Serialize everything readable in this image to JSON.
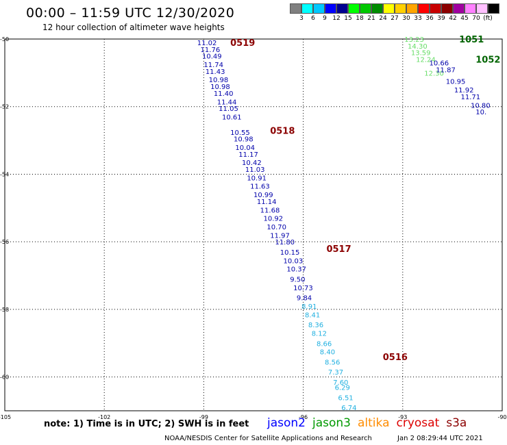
{
  "header": {
    "title": "00:00 – 11:59 UTC 12/30/2020",
    "subtitle": "12 hour collection of altimeter wave heights"
  },
  "legend": {
    "colors": [
      "#808080",
      "#00ffff",
      "#00c8ff",
      "#0000ff",
      "#000090",
      "#00ff00",
      "#00c800",
      "#008c00",
      "#ffff00",
      "#ffd000",
      "#ffa500",
      "#ff0000",
      "#c80000",
      "#8c0000",
      "#a000a0",
      "#ff80ff",
      "#ffc0ff",
      "#000000"
    ],
    "labels": [
      "3",
      "6",
      "9",
      "12",
      "15",
      "18",
      "21",
      "24",
      "27",
      "30",
      "33",
      "36",
      "39",
      "42",
      "45",
      "70",
      "(ft)"
    ]
  },
  "chart_data": {
    "type": "map",
    "x_ticks": [
      "-105",
      "-102",
      "-99",
      "-96",
      "-93",
      "-90"
    ],
    "y_ticks": [
      "-50",
      "-52",
      "-54",
      "-56",
      "-58",
      "-60"
    ],
    "pass_labels": [
      {
        "text": "0519",
        "lon": -98.2,
        "lat": -50.1,
        "color": "#8b0000"
      },
      {
        "text": "0518",
        "lon": -97.0,
        "lat": -52.7,
        "color": "#8b0000"
      },
      {
        "text": "0517",
        "lon": -95.3,
        "lat": -56.2,
        "color": "#8b0000"
      },
      {
        "text": "0516",
        "lon": -93.6,
        "lat": -59.4,
        "color": "#8b0000"
      },
      {
        "text": "1051",
        "lon": -91.3,
        "lat": -50.0,
        "color": "#006400"
      },
      {
        "text": "1052",
        "lon": -90.8,
        "lat": -50.6,
        "color": "#006400"
      }
    ],
    "tracks": [
      {
        "points": [
          {
            "lon": -99.2,
            "lat": -50.1,
            "v": "11.02",
            "c": "#0000aa"
          },
          {
            "lon": -99.1,
            "lat": -50.3,
            "v": "11.76",
            "c": "#0000aa"
          },
          {
            "lon": -99.05,
            "lat": -50.5,
            "v": "10.49",
            "c": "#0000aa"
          },
          {
            "lon": -99.0,
            "lat": -50.75,
            "v": "11.74",
            "c": "#0000aa"
          },
          {
            "lon": -98.95,
            "lat": -50.95,
            "v": "11.43",
            "c": "#0000aa"
          },
          {
            "lon": -98.85,
            "lat": -51.2,
            "v": "10.98",
            "c": "#0000aa"
          },
          {
            "lon": -98.8,
            "lat": -51.4,
            "v": "10.98",
            "c": "#0000aa"
          },
          {
            "lon": -98.7,
            "lat": -51.6,
            "v": "11.40",
            "c": "#0000aa"
          },
          {
            "lon": -98.6,
            "lat": -51.85,
            "v": "11.44",
            "c": "#0000aa"
          },
          {
            "lon": -98.55,
            "lat": -52.05,
            "v": "11.05",
            "c": "#0000aa"
          },
          {
            "lon": -98.45,
            "lat": -52.3,
            "v": "10.61",
            "c": "#0000aa"
          },
          {
            "lon": -98.2,
            "lat": -52.75,
            "v": "10.55",
            "c": "#0000aa"
          },
          {
            "lon": -98.1,
            "lat": -52.95,
            "v": "10.98",
            "c": "#0000aa"
          },
          {
            "lon": -98.05,
            "lat": -53.2,
            "v": "10.04",
            "c": "#0000aa"
          },
          {
            "lon": -97.95,
            "lat": -53.4,
            "v": "11.17",
            "c": "#0000aa"
          },
          {
            "lon": -97.85,
            "lat": -53.65,
            "v": "10.42",
            "c": "#0000aa"
          },
          {
            "lon": -97.75,
            "lat": -53.85,
            "v": "11.03",
            "c": "#0000aa"
          },
          {
            "lon": -97.7,
            "lat": -54.1,
            "v": "10.91",
            "c": "#0000aa"
          },
          {
            "lon": -97.6,
            "lat": -54.35,
            "v": "11.63",
            "c": "#0000aa"
          },
          {
            "lon": -97.5,
            "lat": -54.6,
            "v": "10.99",
            "c": "#0000aa"
          },
          {
            "lon": -97.4,
            "lat": -54.8,
            "v": "11.14",
            "c": "#0000aa"
          },
          {
            "lon": -97.3,
            "lat": -55.05,
            "v": "11.68",
            "c": "#0000aa"
          },
          {
            "lon": -97.2,
            "lat": -55.3,
            "v": "10.92",
            "c": "#0000aa"
          },
          {
            "lon": -97.1,
            "lat": -55.55,
            "v": "10.70",
            "c": "#0000aa"
          },
          {
            "lon": -97.0,
            "lat": -55.8,
            "v": "11.97",
            "c": "#0000aa"
          },
          {
            "lon": -96.85,
            "lat": -56.0,
            "v": "11.80",
            "c": "#0000aa"
          },
          {
            "lon": -96.7,
            "lat": -56.3,
            "v": "10.15",
            "c": "#0000aa"
          },
          {
            "lon": -96.6,
            "lat": -56.55,
            "v": "10.03",
            "c": "#0000aa"
          },
          {
            "lon": -96.5,
            "lat": -56.8,
            "v": "10.37",
            "c": "#0000aa"
          },
          {
            "lon": -96.4,
            "lat": -57.1,
            "v": "9.50",
            "c": "#0000aa"
          },
          {
            "lon": -96.3,
            "lat": -57.35,
            "v": "10.73",
            "c": "#0000aa"
          },
          {
            "lon": -96.2,
            "lat": -57.65,
            "v": "9.84",
            "c": "#0000aa"
          },
          {
            "lon": -96.05,
            "lat": -57.9,
            "v": "8.91",
            "c": "#20b0e0"
          },
          {
            "lon": -95.95,
            "lat": -58.15,
            "v": "8.41",
            "c": "#20b0e0"
          },
          {
            "lon": -95.85,
            "lat": -58.45,
            "v": "8.36",
            "c": "#20b0e0"
          },
          {
            "lon": -95.75,
            "lat": -58.7,
            "v": "8.12",
            "c": "#20b0e0"
          },
          {
            "lon": -95.6,
            "lat": -59.0,
            "v": "8.66",
            "c": "#20b0e0"
          },
          {
            "lon": -95.5,
            "lat": -59.25,
            "v": "8.40",
            "c": "#20b0e0"
          },
          {
            "lon": -95.35,
            "lat": -59.55,
            "v": "8.56",
            "c": "#20b0e0"
          },
          {
            "lon": -95.25,
            "lat": -59.85,
            "v": "7.37",
            "c": "#20b0e0"
          },
          {
            "lon": -95.1,
            "lat": -60.15,
            "v": "7.60",
            "c": "#20b0e0"
          },
          {
            "lon": -95.05,
            "lat": -60.3,
            "v": "6.29",
            "c": "#20b0e0"
          },
          {
            "lon": -94.95,
            "lat": -60.6,
            "v": "6.51",
            "c": "#20b0e0"
          },
          {
            "lon": -94.85,
            "lat": -60.9,
            "v": "6.74",
            "c": "#20b0e0"
          }
        ]
      },
      {
        "points": [
          {
            "lon": -92.95,
            "lat": -50.0,
            "v": "13.23",
            "c": "#66dd66"
          },
          {
            "lon": -92.85,
            "lat": -50.2,
            "v": "14.30",
            "c": "#66dd66"
          },
          {
            "lon": -92.75,
            "lat": -50.4,
            "v": "13.59",
            "c": "#66dd66"
          },
          {
            "lon": -92.6,
            "lat": -50.6,
            "v": "12.24",
            "c": "#66dd66"
          },
          {
            "lon": -92.35,
            "lat": -51.0,
            "v": "12.30",
            "c": "#66dd66"
          }
        ]
      },
      {
        "points": [
          {
            "lon": -92.2,
            "lat": -50.7,
            "v": "10.66",
            "c": "#0000aa"
          },
          {
            "lon": -92.0,
            "lat": -50.9,
            "v": "11.87",
            "c": "#0000aa"
          },
          {
            "lon": -91.7,
            "lat": -51.25,
            "v": "10.95",
            "c": "#0000aa"
          },
          {
            "lon": -91.45,
            "lat": -51.5,
            "v": "11.92",
            "c": "#0000aa"
          },
          {
            "lon": -91.25,
            "lat": -51.7,
            "v": "11.71",
            "c": "#0000aa"
          },
          {
            "lon": -90.95,
            "lat": -51.95,
            "v": "10.80",
            "c": "#0000aa"
          },
          {
            "lon": -90.8,
            "lat": -52.15,
            "v": "10.",
            "c": "#0000aa"
          }
        ]
      }
    ]
  },
  "note": "note: 1) Time is in UTC; 2) SWH is in feet",
  "satellites": [
    {
      "name": "jason2",
      "color": "#0000ff"
    },
    {
      "name": "jason3",
      "color": "#009900"
    },
    {
      "name": "altika",
      "color": "#ff8c00"
    },
    {
      "name": "cryosat",
      "color": "#dd0000"
    },
    {
      "name": "s3a",
      "color": "#8b0000"
    }
  ],
  "footer": {
    "source": "NOAA/NESDIS Center for Satellite Applications and Research",
    "time": "Jan  2 08:29:44 UTC 2021"
  }
}
